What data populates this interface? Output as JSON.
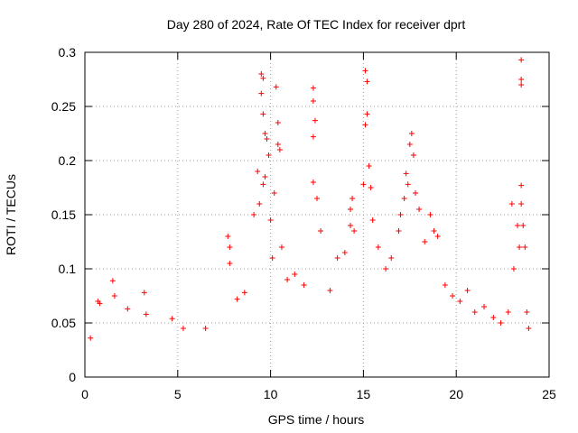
{
  "chart_data": {
    "type": "scatter",
    "title": "Day 280 of 2024, Rate Of TEC Index for receiver dprt",
    "xlabel": "GPS time / hours",
    "ylabel": "ROTI / TECUs",
    "xlim": [
      0,
      25
    ],
    "ylim": [
      0,
      0.3
    ],
    "x_ticks": [
      0,
      5,
      10,
      15,
      20,
      25
    ],
    "y_ticks": [
      0,
      0.05,
      0.1,
      0.15,
      0.2,
      0.25,
      0.3
    ],
    "x_tick_labels": [
      "0",
      "5",
      "10",
      "15",
      "20",
      "25"
    ],
    "y_tick_labels": [
      "0",
      "0.05",
      "0.1",
      "0.15",
      "0.2",
      "0.25",
      "0.3"
    ],
    "grid": true,
    "marker": "+",
    "color": "#ff0000",
    "series": [
      {
        "values": [
          [
            0.3,
            0.036
          ],
          [
            0.7,
            0.07
          ],
          [
            0.8,
            0.068
          ],
          [
            1.5,
            0.089
          ],
          [
            1.6,
            0.075
          ],
          [
            2.3,
            0.063
          ],
          [
            3.2,
            0.078
          ],
          [
            3.3,
            0.058
          ],
          [
            4.7,
            0.054
          ],
          [
            5.3,
            0.045
          ],
          [
            6.5,
            0.045
          ],
          [
            7.7,
            0.13
          ],
          [
            7.8,
            0.12
          ],
          [
            7.8,
            0.105
          ],
          [
            8.2,
            0.072
          ],
          [
            8.6,
            0.078
          ],
          [
            9.1,
            0.15
          ],
          [
            9.3,
            0.19
          ],
          [
            9.4,
            0.16
          ],
          [
            9.5,
            0.28
          ],
          [
            9.5,
            0.262
          ],
          [
            9.6,
            0.276
          ],
          [
            9.6,
            0.243
          ],
          [
            9.7,
            0.225
          ],
          [
            9.8,
            0.22
          ],
          [
            9.9,
            0.205
          ],
          [
            9.7,
            0.185
          ],
          [
            9.6,
            0.178
          ],
          [
            10.0,
            0.145
          ],
          [
            10.1,
            0.11
          ],
          [
            10.3,
            0.268
          ],
          [
            10.4,
            0.235
          ],
          [
            10.4,
            0.215
          ],
          [
            10.5,
            0.21
          ],
          [
            10.2,
            0.17
          ],
          [
            10.6,
            0.12
          ],
          [
            10.9,
            0.09
          ],
          [
            11.3,
            0.095
          ],
          [
            11.8,
            0.085
          ],
          [
            12.3,
            0.267
          ],
          [
            12.3,
            0.255
          ],
          [
            12.4,
            0.237
          ],
          [
            12.3,
            0.222
          ],
          [
            12.3,
            0.18
          ],
          [
            12.5,
            0.165
          ],
          [
            12.7,
            0.135
          ],
          [
            13.2,
            0.08
          ],
          [
            13.6,
            0.11
          ],
          [
            14.0,
            0.115
          ],
          [
            14.3,
            0.14
          ],
          [
            14.3,
            0.155
          ],
          [
            14.4,
            0.165
          ],
          [
            14.5,
            0.135
          ],
          [
            15.0,
            0.178
          ],
          [
            15.1,
            0.283
          ],
          [
            15.2,
            0.273
          ],
          [
            15.2,
            0.243
          ],
          [
            15.1,
            0.233
          ],
          [
            15.3,
            0.195
          ],
          [
            15.4,
            0.175
          ],
          [
            15.5,
            0.145
          ],
          [
            15.8,
            0.12
          ],
          [
            16.2,
            0.1
          ],
          [
            16.5,
            0.11
          ],
          [
            16.9,
            0.135
          ],
          [
            17.0,
            0.15
          ],
          [
            17.2,
            0.165
          ],
          [
            17.3,
            0.188
          ],
          [
            17.4,
            0.178
          ],
          [
            17.5,
            0.215
          ],
          [
            17.6,
            0.225
          ],
          [
            17.7,
            0.205
          ],
          [
            17.8,
            0.17
          ],
          [
            18.0,
            0.155
          ],
          [
            18.3,
            0.125
          ],
          [
            18.6,
            0.15
          ],
          [
            18.8,
            0.135
          ],
          [
            19.0,
            0.13
          ],
          [
            19.4,
            0.085
          ],
          [
            19.8,
            0.075
          ],
          [
            20.2,
            0.07
          ],
          [
            20.6,
            0.08
          ],
          [
            21.0,
            0.06
          ],
          [
            21.5,
            0.065
          ],
          [
            22.0,
            0.055
          ],
          [
            22.4,
            0.05
          ],
          [
            22.8,
            0.06
          ],
          [
            23.0,
            0.16
          ],
          [
            23.1,
            0.1
          ],
          [
            23.3,
            0.14
          ],
          [
            23.5,
            0.293
          ],
          [
            23.5,
            0.275
          ],
          [
            23.5,
            0.27
          ],
          [
            23.5,
            0.177
          ],
          [
            23.5,
            0.16
          ],
          [
            23.4,
            0.12
          ],
          [
            23.6,
            0.14
          ],
          [
            23.7,
            0.12
          ],
          [
            23.8,
            0.06
          ],
          [
            23.9,
            0.045
          ]
        ]
      }
    ]
  }
}
